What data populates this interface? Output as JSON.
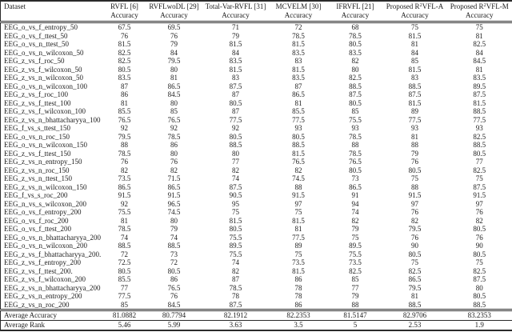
{
  "table": {
    "header": {
      "dataset_label": "Dataset",
      "accuracy_label": "Accuracy",
      "methods": [
        {
          "label": "RVFL [6]"
        },
        {
          "label": "RVFLwoDL [29]"
        },
        {
          "label": "Total-Var-RVFL [31]"
        },
        {
          "label": "MCVELM [30]"
        },
        {
          "label": "IFRVFL [21]"
        },
        {
          "pre": "Proposed R",
          "sup": "2",
          "post": "VFL-A"
        },
        {
          "pre": "Proposed R",
          "sup": "2",
          "post": "VFL-M"
        }
      ]
    },
    "rows": [
      {
        "dataset": "EEG_o_vs_f_entropy_50",
        "values": [
          "67.5",
          "69.5",
          "71",
          "72",
          "68",
          "75",
          "75"
        ]
      },
      {
        "dataset": "EEG_o_vs_f_ttest_50",
        "values": [
          "76",
          "76",
          "79",
          "78.5",
          "78.5",
          "81.5",
          "81"
        ]
      },
      {
        "dataset": "EEG_o_vs_n_ttest_50",
        "values": [
          "81.5",
          "79",
          "81.5",
          "81.5",
          "80.5",
          "81",
          "82.5"
        ]
      },
      {
        "dataset": "EEG_o_vs_n_wilcoxon_50",
        "values": [
          "82.5",
          "84",
          "84",
          "83.5",
          "83.5",
          "84",
          "84"
        ]
      },
      {
        "dataset": "EEG_z_vs_f_roc_50",
        "values": [
          "82.5",
          "79.5",
          "83.5",
          "83",
          "82",
          "85",
          "84.5"
        ]
      },
      {
        "dataset": "EEG_z_vs_f_wilcoxon_50",
        "values": [
          "80.5",
          "80",
          "81.5",
          "81.5",
          "80",
          "81.5",
          "81"
        ]
      },
      {
        "dataset": "EEG_z_vs_n_wilcoxon_50",
        "values": [
          "83.5",
          "81",
          "83",
          "83.5",
          "82.5",
          "83",
          "83.5"
        ]
      },
      {
        "dataset": "EEG_o_vs_n_wilcoxon_100",
        "values": [
          "87",
          "86.5",
          "87.5",
          "87",
          "88.5",
          "88.5",
          "89.5"
        ]
      },
      {
        "dataset": "EEG_z_vs_f_roc_100",
        "values": [
          "86",
          "84.5",
          "87",
          "86.5",
          "87.5",
          "87.5",
          "87.5"
        ]
      },
      {
        "dataset": "EEG_z_vs_f_ttest_100",
        "values": [
          "81",
          "80",
          "80.5",
          "81",
          "80.5",
          "81.5",
          "81.5"
        ]
      },
      {
        "dataset": "EEG_z_vs_f_wilcoxon_100",
        "values": [
          "85.5",
          "85",
          "87",
          "85.5",
          "85",
          "89",
          "88.5"
        ]
      },
      {
        "dataset": "EEG_z_vs_n_bhattacharyya_100",
        "values": [
          "76.5",
          "76.5",
          "77.5",
          "77.5",
          "75.5",
          "77.5",
          "77.5"
        ]
      },
      {
        "dataset": "EEG_f_vs_s_ttest_150",
        "values": [
          "92",
          "92",
          "92",
          "93",
          "93",
          "93",
          "93"
        ]
      },
      {
        "dataset": "EEG_o_vs_n_roc_150",
        "values": [
          "79.5",
          "78.5",
          "80.5",
          "80.5",
          "78.5",
          "81",
          "82.5"
        ]
      },
      {
        "dataset": "EEG_o_vs_n_wilcoxon_150",
        "values": [
          "88",
          "86",
          "88.5",
          "88.5",
          "88",
          "88",
          "88.5"
        ]
      },
      {
        "dataset": "EEG_z_vs_f_ttest_150",
        "values": [
          "78.5",
          "80",
          "80",
          "81.5",
          "78.5",
          "79",
          "80.5"
        ]
      },
      {
        "dataset": "EEG_z_vs_n_entropy_150",
        "values": [
          "76",
          "76",
          "77",
          "76.5",
          "76.5",
          "76",
          "77"
        ]
      },
      {
        "dataset": "EEG_z_vs_n_roc_150",
        "values": [
          "82",
          "82",
          "82",
          "82",
          "80.5",
          "80.5",
          "82.5"
        ]
      },
      {
        "dataset": "EEG_z_vs_n_ttest_150",
        "values": [
          "73.5",
          "71.5",
          "74",
          "74.5",
          "73",
          "75",
          "75"
        ]
      },
      {
        "dataset": "EEG_z_vs_n_wilcoxon_150",
        "values": [
          "86.5",
          "86.5",
          "87.5",
          "88",
          "86.5",
          "88",
          "87.5"
        ]
      },
      {
        "dataset": "EEG_f_vs_s_roc_200",
        "values": [
          "91.5",
          "91.5",
          "90.5",
          "91.5",
          "91",
          "91.5",
          "91.5"
        ]
      },
      {
        "dataset": "EEG_n_vs_s_wilcoxon_200",
        "values": [
          "92",
          "96.5",
          "95",
          "97",
          "94",
          "97",
          "97"
        ]
      },
      {
        "dataset": "EEG_o_vs_f_entropy_200",
        "values": [
          "75.5",
          "74.5",
          "75",
          "75",
          "74",
          "76",
          "76"
        ]
      },
      {
        "dataset": "EEG_o_vs_f_roc_200",
        "values": [
          "81",
          "80",
          "81.5",
          "81.5",
          "82",
          "82",
          "82"
        ]
      },
      {
        "dataset": "EEG_o_vs_f_ttest_200",
        "values": [
          "78.5",
          "79",
          "80.5",
          "81",
          "79",
          "79.5",
          "80.5"
        ]
      },
      {
        "dataset": "EEG_o_vs_n_bhattacharyya_200",
        "values": [
          "74",
          "74",
          "75.5",
          "77.5",
          "75",
          "76",
          "76"
        ]
      },
      {
        "dataset": "EEG_o_vs_n_wilcoxon_200",
        "values": [
          "88.5",
          "88.5",
          "89.5",
          "89",
          "89.5",
          "90",
          "90"
        ]
      },
      {
        "dataset": "EEG_z_vs_f_bhattacharyya_200.",
        "values": [
          "72",
          "73",
          "75.5",
          "75",
          "75.5",
          "80.5",
          "80.5"
        ]
      },
      {
        "dataset": "EEG_z_vs_f_entropy_200",
        "values": [
          "72.5",
          "72",
          "74",
          "73.5",
          "73.5",
          "75",
          "75"
        ]
      },
      {
        "dataset": "EEG_z_vs_f_ttest_200.",
        "values": [
          "80.5",
          "80.5",
          "82",
          "81.5",
          "82.5",
          "82.5",
          "82.5"
        ]
      },
      {
        "dataset": "EEG_z_vs_f_wilcoxon_200",
        "values": [
          "85.5",
          "86",
          "87",
          "86",
          "85",
          "86.5",
          "87.5"
        ]
      },
      {
        "dataset": "EEG_z_vs_n_bhattacharyya_200",
        "values": [
          "77",
          "76.5",
          "78.5",
          "78",
          "77",
          "79.5",
          "80"
        ]
      },
      {
        "dataset": "EEG_z_vs_n_entropy_200",
        "values": [
          "77.5",
          "76",
          "78",
          "78",
          "79",
          "81",
          "80.5"
        ]
      },
      {
        "dataset": "EEG_z_vs_n_roc_200",
        "values": [
          "85",
          "84.5",
          "87.5",
          "86",
          "88",
          "88.5",
          "88.5"
        ]
      }
    ],
    "footer": [
      {
        "label": "Average Accuracy",
        "values": [
          "81.0882",
          "80.7794",
          "82.1912",
          "82.2353",
          "81.5147",
          "82.9706",
          "83.2353"
        ]
      },
      {
        "label": "Average Rank",
        "values": [
          "5.46",
          "5.99",
          "3.63",
          "3.5",
          "5",
          "2.53",
          "1.9"
        ]
      }
    ]
  }
}
